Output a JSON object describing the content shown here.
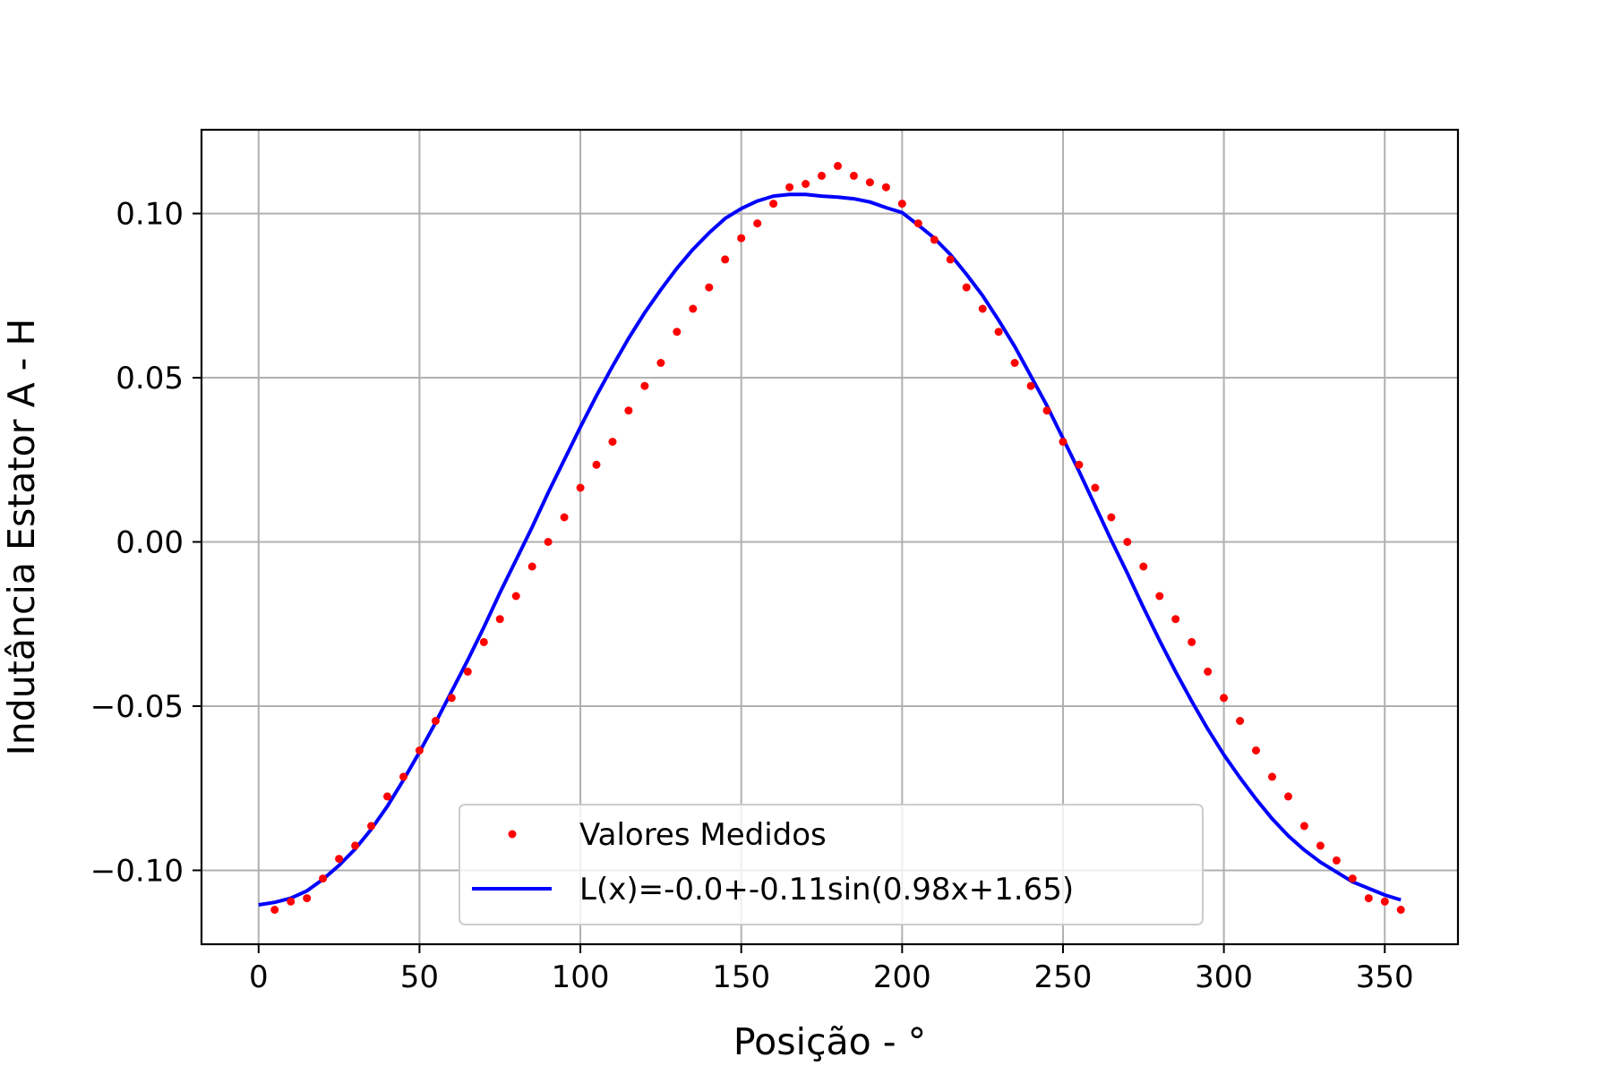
{
  "chart_data": {
    "type": "scatter",
    "xlabel": "Posição - °",
    "ylabel": "Indutância Estator A - H",
    "xlim": [
      -17.75,
      372.75
    ],
    "ylim": [
      -0.1225,
      0.1255
    ],
    "xticks": [
      0,
      50,
      100,
      150,
      200,
      250,
      300,
      350
    ],
    "xtick_labels": [
      "0",
      "50",
      "100",
      "150",
      "200",
      "250",
      "300",
      "350"
    ],
    "yticks": [
      -0.1,
      -0.05,
      0.0,
      0.05,
      0.1
    ],
    "ytick_labels": [
      "−0.10",
      "−0.05",
      "0.00",
      "0.05",
      "0.10"
    ],
    "grid": true,
    "legend_position": "lower-center",
    "series": [
      {
        "name": "Valores Medidos",
        "kind": "scatter",
        "color": "#ff0000",
        "x": [
          5,
          10,
          15,
          20,
          25,
          30,
          35,
          40,
          45,
          50,
          55,
          60,
          65,
          70,
          75,
          80,
          85,
          90,
          95,
          100,
          105,
          110,
          115,
          120,
          125,
          130,
          135,
          140,
          145,
          150,
          155,
          160,
          165,
          170,
          175,
          180,
          185,
          190,
          195,
          200,
          205,
          210,
          215,
          220,
          225,
          230,
          235,
          240,
          245,
          250,
          255,
          260,
          265,
          270,
          275,
          280,
          285,
          290,
          295,
          300,
          305,
          310,
          315,
          320,
          325,
          330,
          335,
          340,
          345,
          350,
          355
        ],
        "y": [
          -0.112,
          -0.1095,
          -0.1085,
          -0.1025,
          -0.0965,
          -0.0925,
          -0.0865,
          -0.0775,
          -0.0715,
          -0.0635,
          -0.0545,
          -0.0475,
          -0.0395,
          -0.0305,
          -0.0235,
          -0.0165,
          -0.0075,
          0.0,
          0.0075,
          0.0165,
          0.0235,
          0.0305,
          0.04,
          0.0475,
          0.0545,
          0.064,
          0.071,
          0.0775,
          0.086,
          0.0925,
          0.097,
          0.103,
          0.108,
          0.109,
          0.1115,
          0.1145,
          0.1115,
          0.1095,
          0.108,
          0.103,
          0.097,
          0.092,
          0.086,
          0.0775,
          0.071,
          0.064,
          0.0545,
          0.0475,
          0.04,
          0.0305,
          0.0235,
          0.0165,
          0.0075,
          0.0,
          -0.0075,
          -0.0165,
          -0.0235,
          -0.0305,
          -0.0395,
          -0.0475,
          -0.0545,
          -0.0635,
          -0.0715,
          -0.0775,
          -0.0865,
          -0.0925,
          -0.097,
          -0.1025,
          -0.1085,
          -0.1095,
          -0.112
        ]
      },
      {
        "name": "L(x)=-0.0+-0.11sin(0.98x+1.65)",
        "kind": "line",
        "color": "#0000ff",
        "x": [
          0,
          5,
          10,
          15,
          20,
          25,
          30,
          35,
          40,
          45,
          50,
          55,
          60,
          65,
          70,
          75,
          80,
          85,
          90,
          95,
          100,
          105,
          110,
          115,
          120,
          125,
          130,
          135,
          140,
          145,
          150,
          155,
          160,
          165,
          170,
          175,
          180,
          185,
          190,
          195,
          200,
          205,
          210,
          215,
          220,
          225,
          230,
          235,
          240,
          245,
          250,
          255,
          260,
          265,
          270,
          275,
          280,
          285,
          290,
          295,
          300,
          305,
          310,
          315,
          320,
          325,
          330,
          335,
          340,
          345,
          350,
          355
        ],
        "y": [
          -0.1105,
          -0.10975,
          -0.1085,
          -0.10625,
          -0.10275,
          -0.0985,
          -0.0935,
          -0.0875,
          -0.0805,
          -0.0725,
          -0.064,
          -0.055,
          -0.0455,
          -0.036,
          -0.026,
          -0.0155,
          -0.0055,
          0.0045,
          0.015,
          0.025,
          0.035,
          0.0445,
          0.0535,
          0.062,
          0.0698,
          0.0768,
          0.0833,
          0.0891,
          0.0941,
          0.0985,
          0.1015,
          0.1038,
          0.1053,
          0.1058,
          0.1058,
          0.1053,
          0.105,
          0.1045,
          0.1035,
          0.1018,
          0.1003,
          0.0965,
          0.0925,
          0.0875,
          0.0815,
          0.075,
          0.0675,
          0.0595,
          0.0505,
          0.0415,
          0.0315,
          0.0215,
          0.011,
          0.0005,
          -0.0095,
          -0.02,
          -0.03,
          -0.0395,
          -0.0485,
          -0.057,
          -0.0648,
          -0.0718,
          -0.0783,
          -0.0843,
          -0.0895,
          -0.0938,
          -0.0975,
          -0.1005,
          -0.1035,
          -0.1055,
          -0.1075,
          -0.109
        ]
      }
    ]
  }
}
